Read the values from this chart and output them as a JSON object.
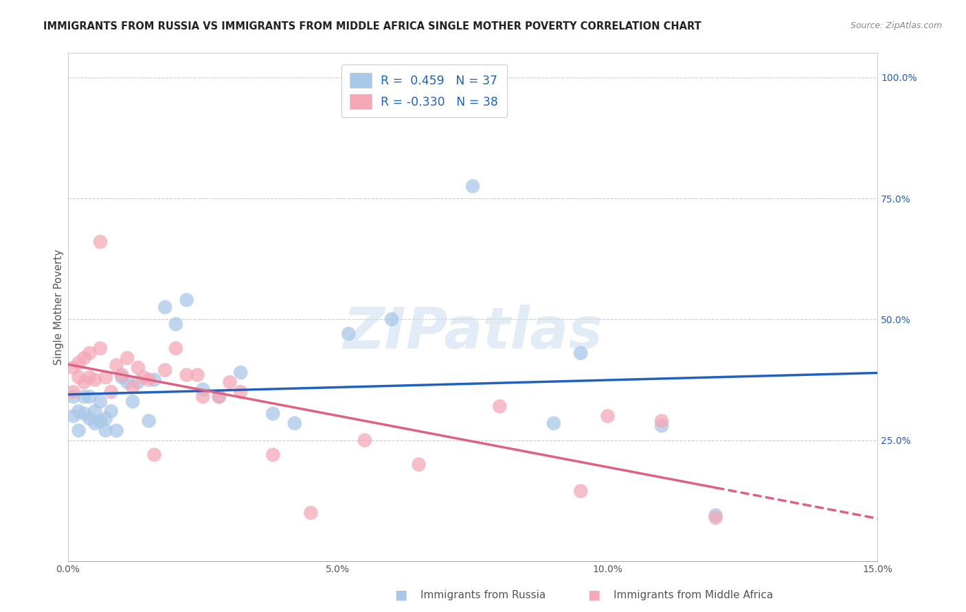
{
  "title": "IMMIGRANTS FROM RUSSIA VS IMMIGRANTS FROM MIDDLE AFRICA SINGLE MOTHER POVERTY CORRELATION CHART",
  "source": "Source: ZipAtlas.com",
  "ylabel": "Single Mother Poverty",
  "xlim": [
    0.0,
    0.15
  ],
  "ylim": [
    0.0,
    1.05
  ],
  "xticks": [
    0.0,
    0.05,
    0.1,
    0.15
  ],
  "xticklabels": [
    "0.0%",
    "5.0%",
    "10.0%",
    "15.0%"
  ],
  "yticks_right": [
    0.25,
    0.5,
    0.75,
    1.0
  ],
  "yticklabels_right": [
    "25.0%",
    "50.0%",
    "75.0%",
    "100.0%"
  ],
  "russia_R": 0.459,
  "russia_N": 37,
  "africa_R": -0.33,
  "africa_N": 38,
  "russia_color": "#a8c8e8",
  "africa_color": "#f4a8b8",
  "russia_line_color": "#2060c0",
  "africa_line_color": "#e06080",
  "watermark_text": "ZIPatlas",
  "legend_label_russia": "R =  0.459   N = 37",
  "legend_label_africa": "R = -0.330   N = 38",
  "bottom_label_russia": "Immigrants from Russia",
  "bottom_label_africa": "Immigrants from Middle Africa",
  "russia_x": [
    0.001,
    0.001,
    0.002,
    0.002,
    0.003,
    0.003,
    0.004,
    0.004,
    0.005,
    0.005,
    0.006,
    0.006,
    0.007,
    0.007,
    0.008,
    0.009,
    0.01,
    0.011,
    0.012,
    0.013,
    0.015,
    0.016,
    0.018,
    0.02,
    0.022,
    0.025,
    0.028,
    0.032,
    0.038,
    0.042,
    0.052,
    0.06,
    0.075,
    0.09,
    0.095,
    0.11,
    0.12
  ],
  "russia_y": [
    0.3,
    0.34,
    0.31,
    0.27,
    0.34,
    0.305,
    0.34,
    0.295,
    0.285,
    0.31,
    0.29,
    0.33,
    0.295,
    0.27,
    0.31,
    0.27,
    0.38,
    0.37,
    0.33,
    0.37,
    0.29,
    0.375,
    0.525,
    0.49,
    0.54,
    0.355,
    0.34,
    0.39,
    0.305,
    0.285,
    0.47,
    0.5,
    0.775,
    0.285,
    0.43,
    0.28,
    0.095
  ],
  "africa_x": [
    0.001,
    0.001,
    0.002,
    0.002,
    0.003,
    0.003,
    0.004,
    0.004,
    0.005,
    0.006,
    0.006,
    0.007,
    0.008,
    0.009,
    0.01,
    0.011,
    0.012,
    0.013,
    0.014,
    0.015,
    0.016,
    0.018,
    0.02,
    0.022,
    0.024,
    0.025,
    0.028,
    0.03,
    0.032,
    0.038,
    0.045,
    0.055,
    0.065,
    0.08,
    0.095,
    0.1,
    0.11,
    0.12
  ],
  "africa_y": [
    0.4,
    0.35,
    0.41,
    0.38,
    0.42,
    0.37,
    0.38,
    0.43,
    0.375,
    0.44,
    0.66,
    0.38,
    0.35,
    0.405,
    0.385,
    0.42,
    0.36,
    0.4,
    0.38,
    0.375,
    0.22,
    0.395,
    0.44,
    0.385,
    0.385,
    0.34,
    0.34,
    0.37,
    0.35,
    0.22,
    0.1,
    0.25,
    0.2,
    0.32,
    0.145,
    0.3,
    0.29,
    0.09
  ],
  "title_fontsize": 10.5,
  "axis_label_fontsize": 11,
  "tick_fontsize": 10,
  "legend_fontsize": 12.5,
  "source_fontsize": 9
}
